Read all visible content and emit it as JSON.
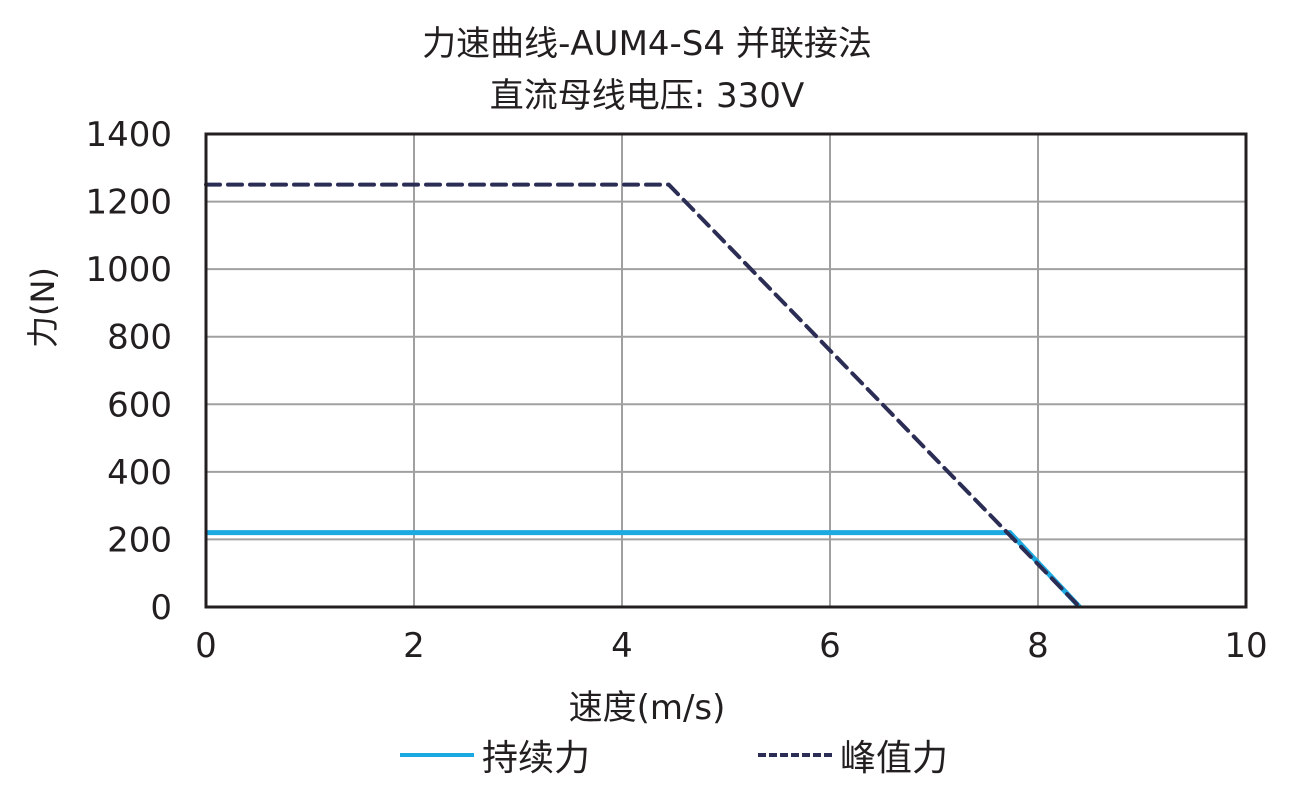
{
  "chart_data": {
    "type": "line",
    "title": "力速曲线-AUM4-S4 并联接法",
    "subtitle": "直流母线电压: 330V",
    "xlabel": "速度(m/s)",
    "ylabel": "力(N)",
    "xlim": [
      0,
      10
    ],
    "ylim": [
      0,
      1400
    ],
    "x_ticks": [
      "0",
      "2",
      "4",
      "6",
      "8",
      "10"
    ],
    "y_ticks": [
      "0",
      "200",
      "400",
      "600",
      "800",
      "1000",
      "1200",
      "1400"
    ],
    "grid": true,
    "legend_position": "bottom",
    "series": [
      {
        "name": "持续力",
        "style": "solid",
        "color": "#1ba9e1",
        "x": [
          0,
          7.73,
          8.4
        ],
        "y": [
          220,
          220,
          0
        ]
      },
      {
        "name": "峰值力",
        "style": "dashed",
        "color": "#2b2d55",
        "x": [
          0,
          4.45,
          8.4
        ],
        "y": [
          1250,
          1250,
          0
        ]
      }
    ]
  },
  "legend": {
    "continuous": "持续力",
    "peak": "峰值力"
  }
}
